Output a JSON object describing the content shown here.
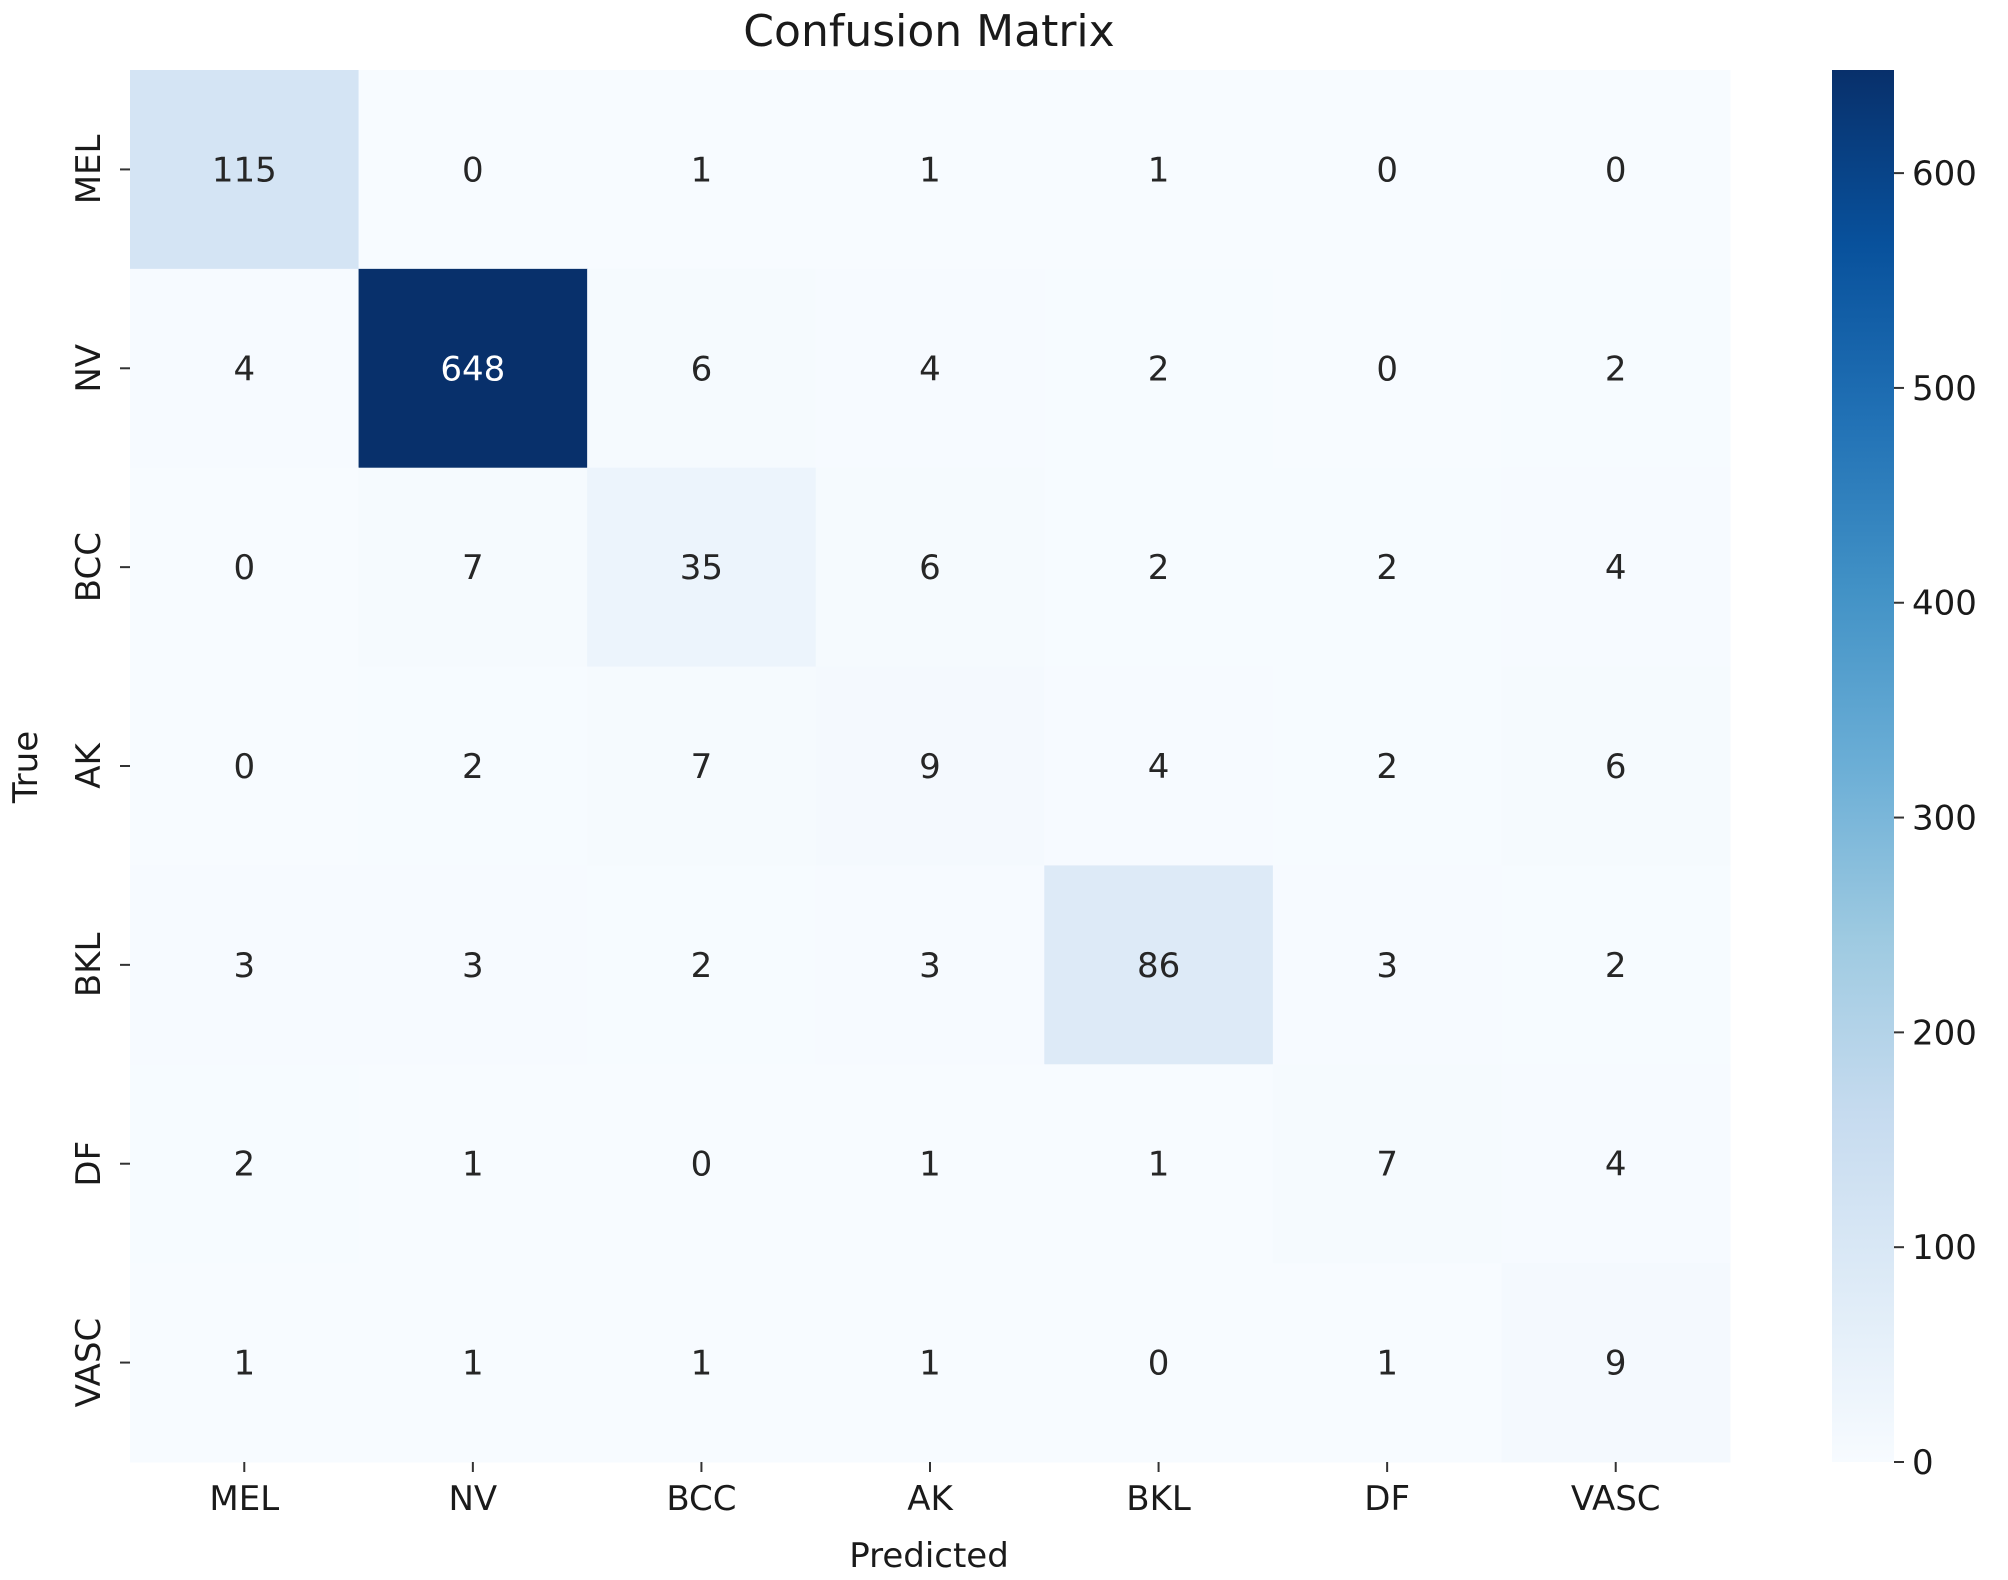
{
  "chart_data": {
    "type": "heatmap",
    "title": "Confusion Matrix",
    "xlabel": "Predicted",
    "ylabel": "True",
    "x_categories": [
      "MEL",
      "NV",
      "BCC",
      "AK",
      "BKL",
      "DF",
      "VASC"
    ],
    "y_categories": [
      "MEL",
      "NV",
      "BCC",
      "AK",
      "BKL",
      "DF",
      "VASC"
    ],
    "values": [
      [
        115,
        0,
        1,
        1,
        1,
        0,
        0
      ],
      [
        4,
        648,
        6,
        4,
        2,
        0,
        2
      ],
      [
        0,
        7,
        35,
        6,
        2,
        2,
        4
      ],
      [
        0,
        2,
        7,
        9,
        4,
        2,
        6
      ],
      [
        3,
        3,
        2,
        3,
        86,
        3,
        2
      ],
      [
        2,
        1,
        0,
        1,
        1,
        7,
        4
      ],
      [
        1,
        1,
        1,
        1,
        0,
        1,
        9
      ]
    ],
    "colormap": "Blues",
    "colormap_stops": [
      "#f7fbff",
      "#deebf7",
      "#c6dbef",
      "#9ecae1",
      "#6baed6",
      "#4292c6",
      "#2171b5",
      "#08519c",
      "#08306b"
    ],
    "color_range": [
      0,
      648
    ],
    "colorbar_ticks": [
      "0",
      "100",
      "200",
      "300",
      "400",
      "500",
      "600"
    ],
    "colorbar_tick_values": [
      0,
      100,
      200,
      300,
      400,
      500,
      600
    ],
    "grid": false
  }
}
